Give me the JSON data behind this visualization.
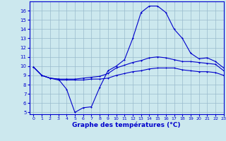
{
  "title": "Graphe des températures (°C)",
  "xlim": [
    -0.5,
    23
  ],
  "ylim": [
    4.8,
    17.0
  ],
  "yticks": [
    5,
    6,
    7,
    8,
    9,
    10,
    11,
    12,
    13,
    14,
    15,
    16
  ],
  "xticks": [
    0,
    1,
    2,
    3,
    4,
    5,
    6,
    7,
    8,
    9,
    10,
    11,
    12,
    13,
    14,
    15,
    16,
    17,
    18,
    19,
    20,
    21,
    22,
    23
  ],
  "bg_color": "#cce8ee",
  "line_color": "#0000cc",
  "grid_color": "#99bbcc",
  "line1_x": [
    0,
    1,
    2,
    3,
    4,
    5,
    6,
    7,
    8,
    9,
    10,
    11,
    12,
    13,
    14,
    15,
    16,
    17,
    18,
    19,
    20,
    21,
    22,
    23
  ],
  "line1_y": [
    9.9,
    9.0,
    8.7,
    8.6,
    7.5,
    5.0,
    5.5,
    5.6,
    7.7,
    9.5,
    10.0,
    10.7,
    13.0,
    15.8,
    16.5,
    16.5,
    15.8,
    14.0,
    13.0,
    11.4,
    10.8,
    10.9,
    10.5,
    9.8
  ],
  "line2_x": [
    0,
    1,
    2,
    3,
    4,
    5,
    6,
    7,
    8,
    9,
    10,
    11,
    12,
    13,
    14,
    15,
    16,
    17,
    18,
    19,
    20,
    21,
    22,
    23
  ],
  "line2_y": [
    9.9,
    9.0,
    8.7,
    8.6,
    8.6,
    8.6,
    8.7,
    8.8,
    8.9,
    9.2,
    9.8,
    10.1,
    10.4,
    10.6,
    10.9,
    11.0,
    10.9,
    10.7,
    10.5,
    10.5,
    10.4,
    10.3,
    10.2,
    9.5
  ],
  "line3_x": [
    0,
    1,
    2,
    3,
    4,
    5,
    6,
    7,
    8,
    9,
    10,
    11,
    12,
    13,
    14,
    15,
    16,
    17,
    18,
    19,
    20,
    21,
    22,
    23
  ],
  "line3_y": [
    9.9,
    9.0,
    8.7,
    8.5,
    8.5,
    8.5,
    8.5,
    8.6,
    8.6,
    8.7,
    9.0,
    9.2,
    9.4,
    9.5,
    9.7,
    9.8,
    9.8,
    9.8,
    9.6,
    9.5,
    9.4,
    9.4,
    9.3,
    9.0
  ]
}
